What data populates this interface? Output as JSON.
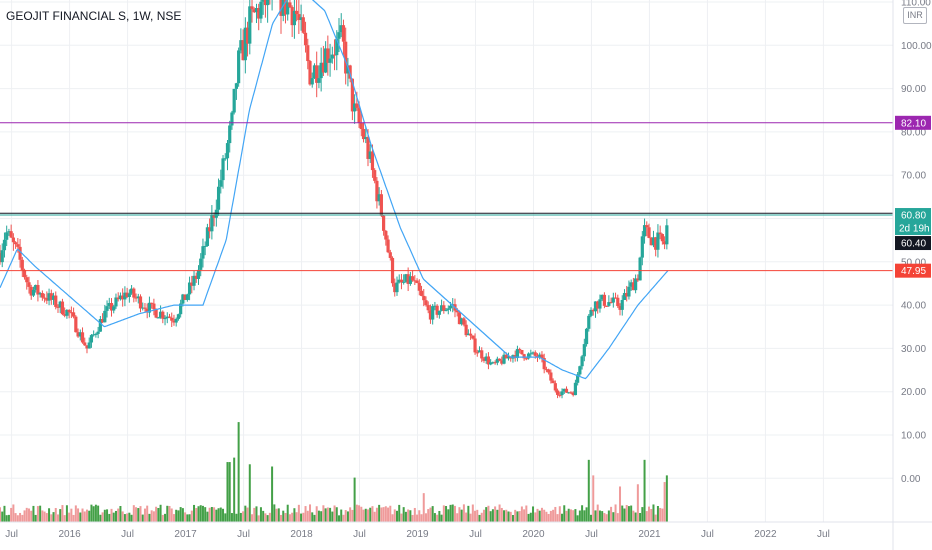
{
  "header": {
    "title": "GEOJIT FINANCIAL S, 1W, NSE",
    "currency": "INR"
  },
  "colors": {
    "up": "#26a69a",
    "down": "#ef5350",
    "ma": "#42a5f5",
    "purple": "#9c27b0",
    "red_line": "#f44336",
    "black_line": "#131722",
    "vol_up": "#43a047",
    "vol_down": "#ef9a9a",
    "grid": "#eef0f3"
  },
  "chart_data": {
    "type": "candlestick",
    "price_axis": {
      "min": -10,
      "max": 110,
      "ticks": [
        "110.00",
        "100.00",
        "90.00",
        "80.00",
        "70.00",
        "60.00",
        "50.00",
        "40.00",
        "30.00",
        "20.00",
        "10.00",
        "0.00"
      ]
    },
    "time_axis": {
      "start": 2015.4,
      "end": 2023.1,
      "ticks": [
        {
          "t": 2015.5,
          "label": "Jul"
        },
        {
          "t": 2016.0,
          "label": "2016"
        },
        {
          "t": 2016.5,
          "label": "Jul"
        },
        {
          "t": 2017.0,
          "label": "2017"
        },
        {
          "t": 2017.5,
          "label": "Jul"
        },
        {
          "t": 2018.0,
          "label": "2018"
        },
        {
          "t": 2018.5,
          "label": "Jul"
        },
        {
          "t": 2019.0,
          "label": "2019"
        },
        {
          "t": 2019.5,
          "label": "Jul"
        },
        {
          "t": 2020.0,
          "label": "2020"
        },
        {
          "t": 2020.5,
          "label": "Jul"
        },
        {
          "t": 2021.0,
          "label": "2021"
        },
        {
          "t": 2021.5,
          "label": "Jul"
        },
        {
          "t": 2022.0,
          "label": "2022"
        },
        {
          "t": 2022.5,
          "label": "Jul"
        }
      ]
    },
    "close_path": [
      {
        "t": 2015.4,
        "p": 52
      },
      {
        "t": 2015.45,
        "p": 57
      },
      {
        "t": 2015.55,
        "p": 52
      },
      {
        "t": 2015.65,
        "p": 44
      },
      {
        "t": 2015.8,
        "p": 42
      },
      {
        "t": 2016.0,
        "p": 38
      },
      {
        "t": 2016.15,
        "p": 30
      },
      {
        "t": 2016.3,
        "p": 38
      },
      {
        "t": 2016.5,
        "p": 43
      },
      {
        "t": 2016.7,
        "p": 39
      },
      {
        "t": 2016.9,
        "p": 37
      },
      {
        "t": 2017.1,
        "p": 47
      },
      {
        "t": 2017.25,
        "p": 62
      },
      {
        "t": 2017.4,
        "p": 82
      },
      {
        "t": 2017.45,
        "p": 95
      },
      {
        "t": 2017.55,
        "p": 105
      },
      {
        "t": 2017.62,
        "p": 108
      },
      {
        "t": 2017.75,
        "p": 112
      },
      {
        "t": 2017.95,
        "p": 108
      },
      {
        "t": 2018.08,
        "p": 93
      },
      {
        "t": 2018.2,
        "p": 98
      },
      {
        "t": 2018.35,
        "p": 101
      },
      {
        "t": 2018.45,
        "p": 85
      },
      {
        "t": 2018.55,
        "p": 78
      },
      {
        "t": 2018.7,
        "p": 60
      },
      {
        "t": 2018.8,
        "p": 44
      },
      {
        "t": 2018.95,
        "p": 46
      },
      {
        "t": 2019.1,
        "p": 38
      },
      {
        "t": 2019.3,
        "p": 40
      },
      {
        "t": 2019.5,
        "p": 30
      },
      {
        "t": 2019.65,
        "p": 26
      },
      {
        "t": 2019.85,
        "p": 29
      },
      {
        "t": 2020.05,
        "p": 28
      },
      {
        "t": 2020.2,
        "p": 20
      },
      {
        "t": 2020.35,
        "p": 20
      },
      {
        "t": 2020.5,
        "p": 40
      },
      {
        "t": 2020.6,
        "p": 41
      },
      {
        "t": 2020.75,
        "p": 40
      },
      {
        "t": 2020.9,
        "p": 47
      },
      {
        "t": 2020.95,
        "p": 57
      },
      {
        "t": 2021.05,
        "p": 55
      },
      {
        "t": 2021.13,
        "p": 54
      },
      {
        "t": 2021.16,
        "p": 60
      }
    ],
    "moving_average": [
      {
        "t": 2015.4,
        "p": 44
      },
      {
        "t": 2015.55,
        "p": 53
      },
      {
        "t": 2015.7,
        "p": 49
      },
      {
        "t": 2016.0,
        "p": 42
      },
      {
        "t": 2016.3,
        "p": 35
      },
      {
        "t": 2016.6,
        "p": 38
      },
      {
        "t": 2016.9,
        "p": 40
      },
      {
        "t": 2017.15,
        "p": 40
      },
      {
        "t": 2017.35,
        "p": 55
      },
      {
        "t": 2017.55,
        "p": 85
      },
      {
        "t": 2017.75,
        "p": 105
      },
      {
        "t": 2017.95,
        "p": 114
      },
      {
        "t": 2018.2,
        "p": 108
      },
      {
        "t": 2018.4,
        "p": 95
      },
      {
        "t": 2018.6,
        "p": 77
      },
      {
        "t": 2018.85,
        "p": 58
      },
      {
        "t": 2019.05,
        "p": 46
      },
      {
        "t": 2019.3,
        "p": 40
      },
      {
        "t": 2019.55,
        "p": 34
      },
      {
        "t": 2019.8,
        "p": 28
      },
      {
        "t": 2020.05,
        "p": 28
      },
      {
        "t": 2020.25,
        "p": 25
      },
      {
        "t": 2020.45,
        "p": 23
      },
      {
        "t": 2020.65,
        "p": 30
      },
      {
        "t": 2020.9,
        "p": 40
      },
      {
        "t": 2021.16,
        "p": 48
      }
    ],
    "volume_spikes": [
      {
        "t": 2017.45,
        "v": 0.45
      },
      {
        "t": 2017.42,
        "v": 0.29
      },
      {
        "t": 2017.37,
        "v": 0.27
      },
      {
        "t": 2017.55,
        "v": 0.26
      },
      {
        "t": 2017.75,
        "v": 0.25
      },
      {
        "t": 2018.45,
        "v": 0.2
      },
      {
        "t": 2019.05,
        "v": 0.13
      },
      {
        "t": 2020.48,
        "v": 0.28
      },
      {
        "t": 2020.52,
        "v": 0.21
      },
      {
        "t": 2020.95,
        "v": 0.28
      },
      {
        "t": 2020.9,
        "v": 0.17
      },
      {
        "t": 2021.13,
        "v": 0.18
      },
      {
        "t": 2021.16,
        "v": 0.21
      },
      {
        "t": 2020.75,
        "v": 0.16
      }
    ],
    "levels": [
      {
        "price": 82.1,
        "label": "82.10",
        "color": "#9c27b0"
      },
      {
        "price": 60.8,
        "label": "60.80",
        "color": "#26a69a"
      },
      {
        "price": 47.95,
        "label": "47.95",
        "color": "#f44336"
      }
    ],
    "last_price": {
      "price": 60.4,
      "label": "60.40"
    },
    "countdown": {
      "label": "2d 19h"
    }
  }
}
